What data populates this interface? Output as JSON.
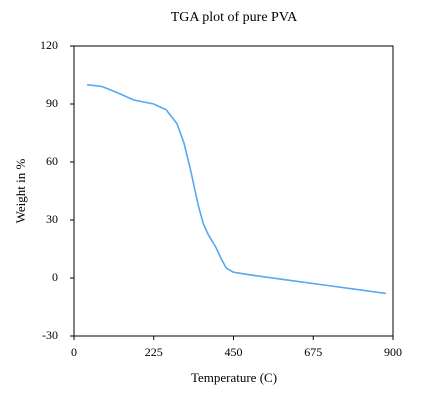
{
  "chart_data": {
    "type": "line",
    "title": "TGA plot of pure PVA",
    "x_label": "Temperature (C)",
    "y_label": "Weight in %",
    "x": [
      37,
      80,
      120,
      170,
      225,
      260,
      290,
      310,
      330,
      350,
      365,
      380,
      400,
      415,
      430,
      450,
      500,
      600,
      700,
      800,
      880
    ],
    "series": [
      {
        "name": "pure PVA",
        "color": "#56a8f0",
        "values": [
          100,
          99,
          96,
          92,
          90,
          87,
          80,
          70,
          55,
          38,
          28,
          22,
          16,
          10,
          5,
          3,
          1.5,
          -1,
          -3.5,
          -6,
          -8
        ]
      }
    ],
    "xlim": [
      0,
      900
    ],
    "xticks": [
      0,
      225,
      450,
      675,
      900
    ],
    "ylim": [
      -30,
      120
    ],
    "yticks": [
      -30,
      0,
      30,
      60,
      90,
      120
    ],
    "grid": false,
    "legend": false
  }
}
